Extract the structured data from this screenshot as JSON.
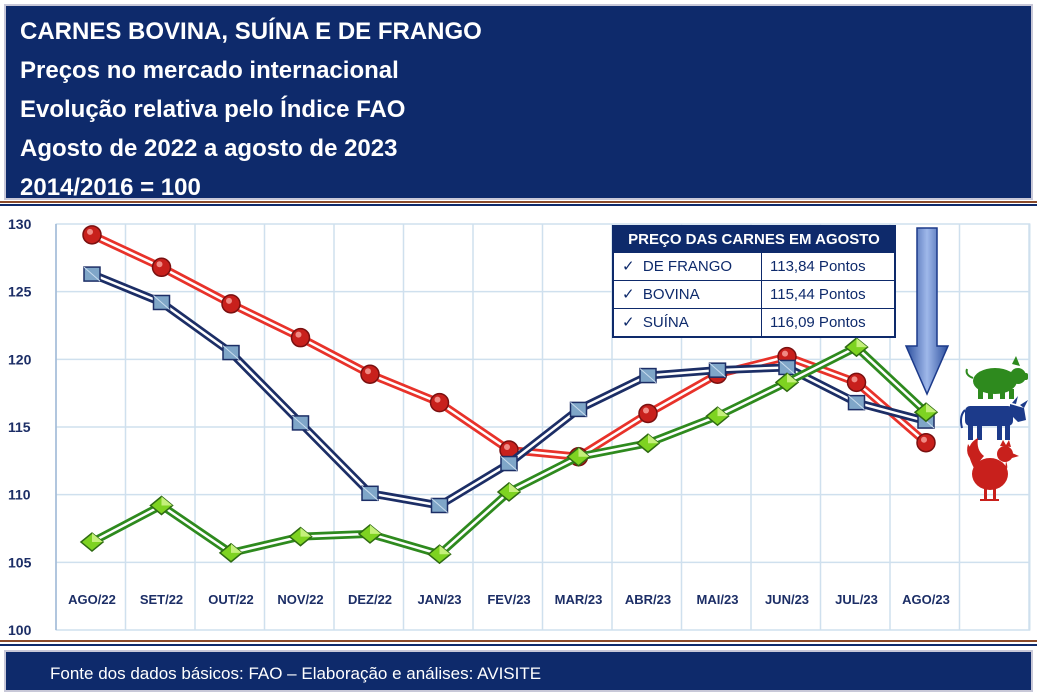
{
  "header": {
    "lines": [
      "CARNES BOVINA, SUÍNA E DE FRANGO",
      "Preços no mercado internacional",
      "Evolução relativa pelo Índice FAO",
      "Agosto de 2022 a agosto de 2023",
      "2014/2016 = 100"
    ]
  },
  "legend": {
    "title": "PREÇO DAS CARNES EM AGOSTO",
    "check": "✓",
    "rows": [
      {
        "name": "DE FRANGO",
        "value": "113,84 Pontos"
      },
      {
        "name": "BOVINA",
        "value": "115,44 Pontos"
      },
      {
        "name": "SUÍNA",
        "value": "116,09 Pontos"
      }
    ]
  },
  "footer": {
    "text": "Fonte dos dados básicos: FAO – Elaboração e análises: AVISITE"
  },
  "colors": {
    "navy": "#0e2a6b",
    "frango": "#e8322a",
    "bovina": "#1c2e66",
    "suina": "#2e8a1e",
    "arrow": "#4a72c4",
    "grid": "#cfe0ee"
  },
  "icons": [
    "pig-icon",
    "cow-icon",
    "rooster-icon",
    "down-arrow-icon"
  ],
  "chart_data": {
    "type": "line",
    "categories": [
      "AGO/22",
      "SET/22",
      "OUT/22",
      "NOV/22",
      "DEZ/22",
      "JAN/23",
      "FEV/23",
      "MAR/23",
      "ABR/23",
      "MAI/23",
      "JUN/23",
      "JUL/23",
      "AGO/23"
    ],
    "ylim": [
      100,
      130
    ],
    "yticks": [
      100,
      105,
      110,
      115,
      120,
      125,
      130
    ],
    "grid": true,
    "series": [
      {
        "name": "DE FRANGO",
        "color": "#e8322a",
        "marker": "circle",
        "values": [
          129.2,
          126.8,
          124.1,
          121.6,
          118.9,
          116.8,
          113.3,
          112.8,
          116.0,
          118.9,
          120.2,
          118.3,
          113.84
        ]
      },
      {
        "name": "BOVINA",
        "color": "#1c2e66",
        "marker": "square",
        "values": [
          126.3,
          124.2,
          120.5,
          115.3,
          110.1,
          109.2,
          112.3,
          116.3,
          118.8,
          119.2,
          119.4,
          116.8,
          115.44
        ]
      },
      {
        "name": "SUÍNA",
        "color": "#2e8a1e",
        "marker": "diamond",
        "values": [
          106.5,
          109.2,
          105.7,
          106.9,
          107.1,
          105.6,
          110.2,
          112.8,
          113.8,
          115.8,
          118.3,
          120.9,
          116.09
        ]
      }
    ]
  }
}
